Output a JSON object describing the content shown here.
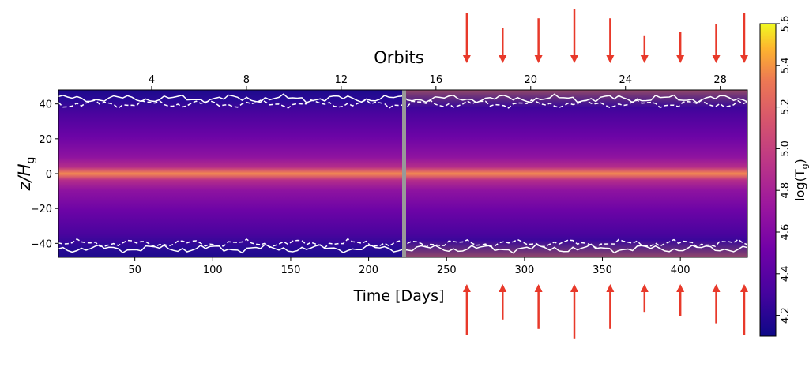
{
  "chart_data": {
    "type": "heatmap",
    "title": "",
    "xlabel": "Time [Days]",
    "x2label": "Orbits",
    "ylabel_main": "z/H",
    "ylabel_sub": "g",
    "colorbar_label_main": "log(T",
    "colorbar_label_sub": "g",
    "colorbar_label_end": ")",
    "xlim": [
      1,
      443
    ],
    "ylim": [
      -48,
      48
    ],
    "clim": [
      4.1,
      5.6
    ],
    "panel_split_day": 222,
    "xticks": [
      50,
      100,
      150,
      200,
      250,
      300,
      350,
      400
    ],
    "xtick_labels": [
      "50",
      "100",
      "150",
      "200",
      "250",
      "300",
      "350",
      "400"
    ],
    "yticks": [
      -40,
      -20,
      0,
      20,
      40
    ],
    "ytick_labels": [
      "−40",
      "−20",
      "0",
      "20",
      "40"
    ],
    "orbit_ticks": [
      4,
      8,
      12,
      16,
      20,
      24,
      28
    ],
    "orbit_tick_labels": [
      "4",
      "8",
      "12",
      "16",
      "20",
      "24",
      "28"
    ],
    "orbit_to_day": 15.2,
    "cbar_ticks": [
      4.2,
      4.4,
      4.6,
      4.8,
      5.0,
      5.2,
      5.4,
      5.6
    ],
    "cbar_tick_labels": [
      "4.2",
      "4.4",
      "4.6",
      "4.8",
      "5.0",
      "5.2",
      "5.4",
      "5.6"
    ],
    "photosphere_solid_z": 43,
    "photosphere_dashed_z": 40,
    "arrow_days": [
      263,
      286,
      309,
      332,
      355,
      377,
      400,
      423,
      446
    ],
    "arrow_relative_lengths": [
      1.0,
      0.6,
      0.85,
      1.1,
      0.85,
      0.4,
      0.5,
      0.7,
      1.0
    ],
    "colors": {
      "arrow": "#e8392a",
      "boundary": "#ffffff",
      "separator": "#999999"
    }
  }
}
